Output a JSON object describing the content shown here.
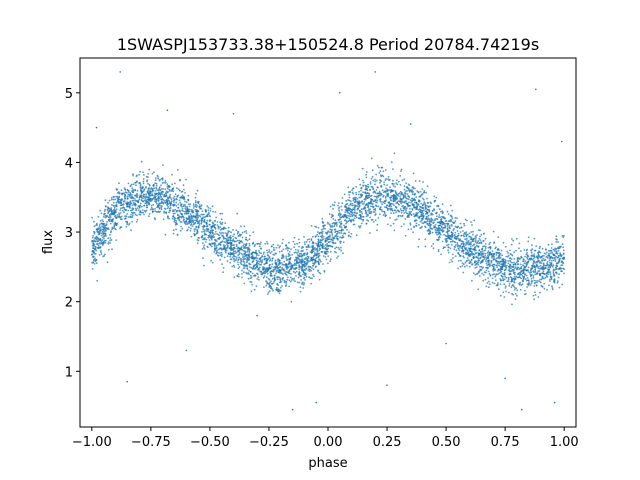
{
  "chart_data": {
    "type": "scatter",
    "title": "1SWASPJ153733.38+150524.8 Period 20784.74219s",
    "xlabel": "phase",
    "ylabel": "flux",
    "xlim": [
      -1.05,
      1.05
    ],
    "ylim": [
      0.2,
      5.5
    ],
    "xticks": [
      -1.0,
      -0.75,
      -0.5,
      -0.25,
      0.0,
      0.25,
      0.5,
      0.75,
      1.0
    ],
    "xtick_labels": [
      "−1.00",
      "−0.75",
      "−0.50",
      "−0.25",
      "0.00",
      "0.25",
      "0.50",
      "0.75",
      "1.00"
    ],
    "yticks": [
      1,
      2,
      3,
      4,
      5
    ],
    "ytick_labels": [
      "1",
      "2",
      "3",
      "4",
      "5"
    ],
    "grid": false,
    "marker_color": "#1f77b4",
    "series": [
      {
        "name": "",
        "curve_x": [
          -1.0,
          -0.9,
          -0.8,
          -0.75,
          -0.7,
          -0.6,
          -0.5,
          -0.4,
          -0.3,
          -0.25,
          -0.2,
          -0.1,
          0.0,
          0.1,
          0.2,
          0.25,
          0.3,
          0.4,
          0.5,
          0.6,
          0.7,
          0.8,
          0.85,
          0.9,
          1.0
        ],
        "curve_y": [
          2.75,
          3.3,
          3.5,
          3.52,
          3.5,
          3.3,
          3.0,
          2.75,
          2.55,
          2.45,
          2.45,
          2.55,
          2.9,
          3.3,
          3.5,
          3.52,
          3.5,
          3.3,
          3.0,
          2.75,
          2.55,
          2.45,
          2.45,
          2.5,
          2.6
        ],
        "scatter_width": 0.3,
        "outliers": [
          {
            "x": -0.98,
            "y": 4.5
          },
          {
            "x": -0.88,
            "y": 5.3
          },
          {
            "x": -0.85,
            "y": 0.85
          },
          {
            "x": -0.68,
            "y": 4.75
          },
          {
            "x": -0.6,
            "y": 1.3
          },
          {
            "x": -0.4,
            "y": 4.7
          },
          {
            "x": -0.3,
            "y": 1.8
          },
          {
            "x": -0.15,
            "y": 0.45
          },
          {
            "x": -0.05,
            "y": 0.55
          },
          {
            "x": 0.05,
            "y": 5.0
          },
          {
            "x": 0.2,
            "y": 5.3
          },
          {
            "x": 0.25,
            "y": 0.8
          },
          {
            "x": 0.35,
            "y": 4.55
          },
          {
            "x": 0.5,
            "y": 1.4
          },
          {
            "x": 0.75,
            "y": 0.9
          },
          {
            "x": 0.82,
            "y": 0.45
          },
          {
            "x": 0.88,
            "y": 5.05
          },
          {
            "x": 0.96,
            "y": 0.55
          },
          {
            "x": 0.99,
            "y": 4.3
          }
        ]
      }
    ]
  }
}
